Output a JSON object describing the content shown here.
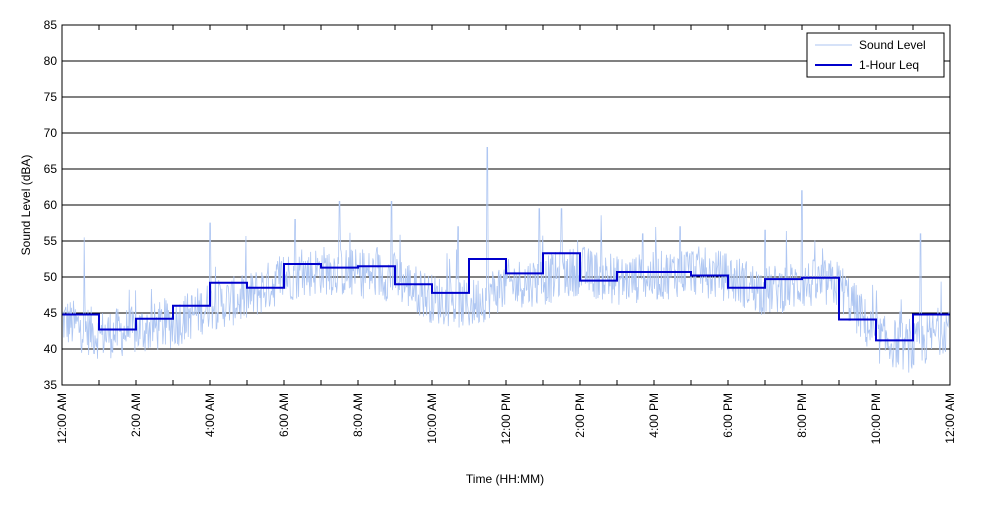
{
  "chart_data": {
    "type": "line",
    "xlabel": "Time (HH:MM)",
    "ylabel": "Sound Level (dBA)",
    "ylim": [
      35,
      85
    ],
    "xlim_hours": [
      0,
      24
    ],
    "grid": "horizontal",
    "legend_position": "top-right",
    "yticks": [
      "35",
      "40",
      "45",
      "50",
      "55",
      "60",
      "65",
      "70",
      "75",
      "80",
      "85"
    ],
    "xticks": [
      "12:00 AM",
      "2:00 AM",
      "4:00 AM",
      "6:00 AM",
      "8:00 AM",
      "10:00 AM",
      "12:00 PM",
      "2:00 PM",
      "4:00 PM",
      "6:00 PM",
      "8:00 PM",
      "10:00 PM",
      "12:00 AM"
    ],
    "series": [
      {
        "name": "Sound Level",
        "color": "#aec6f2",
        "base_by_hour": [
          44,
          42,
          42.5,
          43.5,
          46,
          47,
          50,
          51,
          50.5,
          50,
          47,
          46,
          49,
          49.5,
          51,
          49.5,
          50,
          51,
          50,
          48,
          49,
          49,
          41.5,
          40,
          43.5
        ],
        "peaks": [
          {
            "hour": 11.5,
            "level": 68
          },
          {
            "hour": 20.0,
            "level": 62
          },
          {
            "hour": 8.9,
            "level": 60.5
          },
          {
            "hour": 7.5,
            "level": 60.5
          },
          {
            "hour": 12.9,
            "level": 59.5
          },
          {
            "hour": 13.5,
            "level": 59.5
          },
          {
            "hour": 6.3,
            "level": 58
          },
          {
            "hour": 4.0,
            "level": 57.5
          },
          {
            "hour": 16.7,
            "level": 57
          },
          {
            "hour": 0.6,
            "level": 55.5
          },
          {
            "hour": 23.2,
            "level": 56
          },
          {
            "hour": 15.7,
            "level": 56
          },
          {
            "hour": 19.0,
            "level": 56.5
          },
          {
            "hour": 10.7,
            "level": 57
          }
        ]
      },
      {
        "name": "1-Hour Leq",
        "color": "#0000cc",
        "hourly_values": [
          44.8,
          42.7,
          44.2,
          46.0,
          49.2,
          48.5,
          51.8,
          51.3,
          51.5,
          49.0,
          47.8,
          52.5,
          50.5,
          53.3,
          49.5,
          50.7,
          50.7,
          50.2,
          48.5,
          49.7,
          49.9,
          44.1,
          41.2,
          44.8
        ]
      }
    ]
  }
}
